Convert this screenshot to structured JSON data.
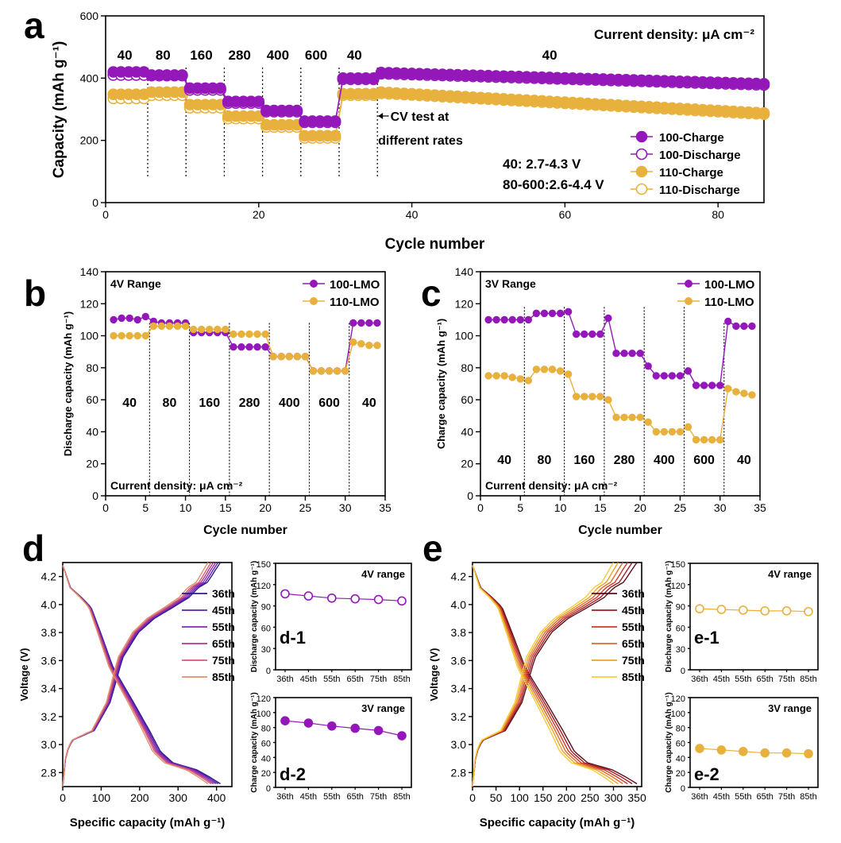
{
  "colors": {
    "c100": "#9418b9",
    "c110": "#e8b03c"
  },
  "chart_data": [
    {
      "id": "a",
      "type": "scatter",
      "panel_label": "a",
      "xlabel": "Cycle number",
      "ylabel": "Capacity (mAh g⁻¹)",
      "xlim": [
        0,
        86
      ],
      "ylim": [
        0,
        600
      ],
      "xticks": [
        0,
        20,
        40,
        60,
        80
      ],
      "yticks": [
        0,
        200,
        400,
        600
      ],
      "annotation": "Current density: μA cm⁻²",
      "rate_labels": [
        {
          "x": 2.5,
          "text": "40"
        },
        {
          "x": 7.5,
          "text": "80"
        },
        {
          "x": 12.5,
          "text": "160"
        },
        {
          "x": 17.5,
          "text": "280"
        },
        {
          "x": 22.5,
          "text": "400"
        },
        {
          "x": 27.5,
          "text": "600"
        },
        {
          "x": 32.5,
          "text": "40"
        },
        {
          "x": 58,
          "text": "40"
        }
      ],
      "dividers": [
        5.5,
        10.5,
        15.5,
        20.5,
        25.5,
        30.5,
        35.5
      ],
      "cv_note": [
        "CV test at",
        "different rates"
      ],
      "voltage_note": [
        "40: 2.7-4.3 V",
        "80-600:2.6-4.4 V"
      ],
      "segments": [
        {
          "start": 1,
          "end": 5,
          "charge100": 420,
          "discharge100": 410,
          "charge110": 348,
          "discharge110": 335
        },
        {
          "start": 6,
          "end": 10,
          "charge100": 410,
          "discharge100": 408,
          "charge110": 355,
          "discharge110": 345
        },
        {
          "start": 11,
          "end": 15,
          "charge100": 368,
          "discharge100": 362,
          "charge110": 315,
          "discharge110": 305
        },
        {
          "start": 16,
          "end": 20,
          "charge100": 325,
          "discharge100": 320,
          "charge110": 278,
          "discharge110": 270
        },
        {
          "start": 21,
          "end": 25,
          "charge100": 296,
          "discharge100": 292,
          "charge110": 250,
          "discharge110": 243
        },
        {
          "start": 26,
          "end": 30,
          "charge100": 262,
          "discharge100": 258,
          "charge110": 215,
          "discharge110": 208
        },
        {
          "start": 31,
          "end": 35,
          "charge100": 400,
          "discharge100": 396,
          "charge110": 350,
          "discharge110": 345
        }
      ],
      "long_term": {
        "start": 36,
        "end": 86,
        "c100_start": 418,
        "c100_end": 382,
        "c110_start": 355,
        "c110_end": 288
      },
      "legend": [
        "100-Charge",
        "100-Discharge",
        "110-Charge",
        "110-Discharge"
      ]
    },
    {
      "id": "b",
      "type": "line",
      "panel_label": "b",
      "xlabel": "Cycle number",
      "ylabel": "Discharge capacity (mAh g⁻¹)",
      "xlim": [
        0,
        35
      ],
      "ylim": [
        0,
        140
      ],
      "xticks": [
        0,
        5,
        10,
        15,
        20,
        25,
        30,
        35
      ],
      "yticks": [
        0,
        20,
        40,
        60,
        80,
        100,
        120,
        140
      ],
      "range_label": "4V Range",
      "annotation": "Current density: μA cm⁻²",
      "rate_labels": [
        "40",
        "80",
        "160",
        "280",
        "400",
        "600",
        "40"
      ],
      "dividers": [
        5.5,
        10.5,
        15.5,
        20.5,
        25.5,
        30.5
      ],
      "series": [
        {
          "name": "100-LMO",
          "values": [
            110,
            111,
            111,
            110,
            112,
            109,
            108,
            108,
            108,
            108,
            102,
            102,
            102,
            102,
            102,
            93,
            93,
            93,
            93,
            93,
            87,
            87,
            87,
            87,
            87,
            78,
            78,
            78,
            78,
            78,
            108,
            108,
            108,
            108
          ]
        },
        {
          "name": "110-LMO",
          "values": [
            100,
            100,
            100,
            100,
            100,
            106,
            106,
            106,
            106,
            106,
            104,
            104,
            104,
            104,
            104,
            101,
            101,
            101,
            101,
            101,
            87,
            87,
            87,
            87,
            87,
            78,
            78,
            78,
            78,
            78,
            96,
            95,
            94,
            94
          ]
        }
      ]
    },
    {
      "id": "c",
      "type": "line",
      "panel_label": "c",
      "xlabel": "Cycle number",
      "ylabel": "Charge capacity (mAh g⁻¹)",
      "xlim": [
        0,
        35
      ],
      "ylim": [
        0,
        140
      ],
      "xticks": [
        0,
        5,
        10,
        15,
        20,
        25,
        30,
        35
      ],
      "yticks": [
        0,
        20,
        40,
        60,
        80,
        100,
        120,
        140
      ],
      "range_label": "3V Range",
      "annotation": "Current density: μA cm⁻²",
      "rate_labels": [
        "40",
        "80",
        "160",
        "280",
        "400",
        "600",
        "40"
      ],
      "dividers": [
        5.5,
        10.5,
        15.5,
        20.5,
        25.5,
        30.5
      ],
      "series": [
        {
          "name": "100-LMO",
          "values": [
            110,
            110,
            110,
            110,
            110,
            110,
            114,
            114,
            114,
            114,
            115,
            101,
            101,
            101,
            101,
            111,
            89,
            89,
            89,
            89,
            81,
            75,
            75,
            75,
            75,
            78,
            69,
            69,
            69,
            69,
            109,
            106,
            106,
            106
          ]
        },
        {
          "name": "110-LMO",
          "values": [
            75,
            75,
            75,
            74,
            73,
            72,
            79,
            79,
            79,
            78,
            76,
            62,
            62,
            62,
            62,
            60,
            49,
            49,
            49,
            49,
            46,
            40,
            40,
            40,
            40,
            43,
            35,
            35,
            35,
            35,
            67,
            65,
            64,
            63
          ]
        }
      ]
    },
    {
      "id": "d",
      "type": "line",
      "panel_label": "d",
      "xlabel": "Specific capacity (mAh g⁻¹)",
      "ylabel": "Voltage (V)",
      "xlim": [
        0,
        440
      ],
      "ylim": [
        2.7,
        4.3
      ],
      "xticks": [
        0,
        100,
        200,
        300,
        400
      ],
      "yticks": [
        2.8,
        3.0,
        3.2,
        3.4,
        3.6,
        3.8,
        4.0,
        4.2
      ],
      "legend": [
        "36th",
        "45th",
        "55th",
        "65th",
        "75th",
        "85th"
      ],
      "series_colors": [
        "#2b1b8f",
        "#5a22b0",
        "#8a2ab8",
        "#b23a8c",
        "#d65a78",
        "#e0906a"
      ],
      "charge_caps": [
        410,
        404,
        398,
        392,
        386,
        378
      ],
      "discharge_caps": [
        410,
        404,
        398,
        392,
        386,
        378
      ]
    },
    {
      "id": "d-1",
      "type": "line",
      "panel_label": "d-1",
      "ylabel": "Discharge capacity (mAh g⁻¹)",
      "range_label": "4V range",
      "categories": [
        "36th",
        "45th",
        "55th",
        "65th",
        "75th",
        "85th"
      ],
      "values": [
        107,
        104,
        101,
        100,
        99,
        97
      ],
      "ylim": [
        0,
        150
      ],
      "yticks": [
        0,
        30,
        60,
        90,
        120,
        150
      ]
    },
    {
      "id": "d-2",
      "type": "line",
      "panel_label": "d-2",
      "ylabel": "Charge capacity (mAh g⁻¹)",
      "range_label": "3V range",
      "categories": [
        "36th",
        "45th",
        "55th",
        "65th",
        "75th",
        "85th"
      ],
      "values": [
        89,
        86,
        82,
        79,
        76,
        69
      ],
      "ylim": [
        0,
        120
      ],
      "yticks": [
        0,
        20,
        40,
        60,
        80,
        100,
        120
      ]
    },
    {
      "id": "e",
      "type": "line",
      "panel_label": "e",
      "xlabel": "Specific capacity (mAh g⁻¹)",
      "ylabel": "Voltage (V)",
      "xlim": [
        0,
        360
      ],
      "ylim": [
        2.7,
        4.3
      ],
      "xticks": [
        0,
        50,
        100,
        150,
        200,
        250,
        300,
        350
      ],
      "yticks": [
        2.8,
        3.0,
        3.2,
        3.4,
        3.6,
        3.8,
        4.0,
        4.2
      ],
      "legend": [
        "36th",
        "45th",
        "55th",
        "65th",
        "75th",
        "85th"
      ],
      "series_colors": [
        "#5a0f1a",
        "#a01c2a",
        "#cc3a2a",
        "#dd6a28",
        "#eca02a",
        "#f2cc3a"
      ],
      "charge_caps": [
        350,
        340,
        330,
        320,
        310,
        300
      ],
      "discharge_caps": [
        350,
        340,
        330,
        320,
        310,
        300
      ]
    },
    {
      "id": "e-1",
      "type": "line",
      "panel_label": "e-1",
      "ylabel": "Discharge capacity (mAh g⁻¹)",
      "range_label": "4V range",
      "categories": [
        "36th",
        "45th",
        "55th",
        "65th",
        "75th",
        "85th"
      ],
      "values": [
        86,
        85,
        84,
        83,
        83,
        82
      ],
      "ylim": [
        0,
        150
      ],
      "yticks": [
        0,
        30,
        60,
        90,
        120,
        150
      ]
    },
    {
      "id": "e-2",
      "type": "line",
      "panel_label": "e-2",
      "ylabel": "Charge capacity (mAh g⁻¹)",
      "range_label": "3V range",
      "categories": [
        "36th",
        "45th",
        "55th",
        "65th",
        "75th",
        "85th"
      ],
      "values": [
        52,
        50,
        48,
        46,
        46,
        45
      ],
      "ylim": [
        0,
        120
      ],
      "yticks": [
        0,
        20,
        40,
        60,
        80,
        100,
        120
      ]
    }
  ]
}
